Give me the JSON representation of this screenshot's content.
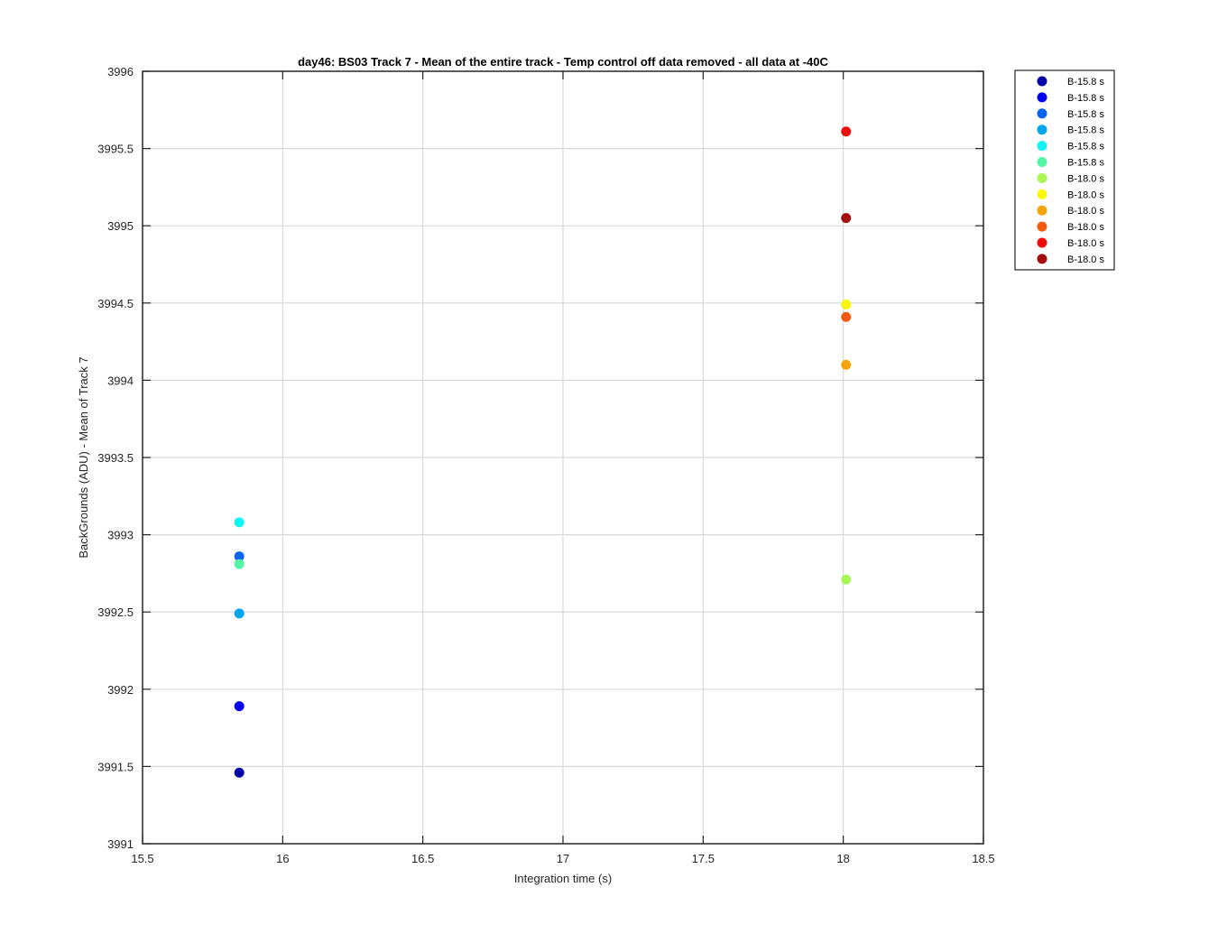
{
  "chart_data": {
    "type": "scatter",
    "title": "day46: BS03  Track 7 - Mean of the entire track - Temp control off data removed - all data at -40C",
    "xlabel": "Integration time (s)",
    "ylabel": "BackGrounds (ADU) - Mean of Track 7",
    "xlim": [
      15.5,
      18.5
    ],
    "ylim": [
      3991,
      3996
    ],
    "xticks": [
      "15.5",
      "16",
      "16.5",
      "17",
      "17.5",
      "18",
      "18.5"
    ],
    "yticks": [
      "3991",
      "3991.5",
      "3992",
      "3992.5",
      "3993",
      "3993.5",
      "3994",
      "3994.5",
      "3995",
      "3995.5",
      "3996"
    ],
    "grid": true,
    "legend_position": "outside-top-right",
    "series": [
      {
        "name": "B-15.8 s",
        "color": "#0000a8",
        "x": 15.845,
        "y": 3991.46
      },
      {
        "name": "B-15.8 s",
        "color": "#0000ee",
        "x": 15.845,
        "y": 3991.89
      },
      {
        "name": "B-15.8 s",
        "color": "#0a64f0",
        "x": 15.845,
        "y": 3992.86
      },
      {
        "name": "B-15.8 s",
        "color": "#00a6f0",
        "x": 15.845,
        "y": 3992.49
      },
      {
        "name": "B-15.8 s",
        "color": "#10f4f4",
        "x": 15.845,
        "y": 3993.08
      },
      {
        "name": "B-15.8 s",
        "color": "#52f7a6",
        "x": 15.845,
        "y": 3992.81
      },
      {
        "name": "B-18.0 s",
        "color": "#a8f752",
        "x": 18.01,
        "y": 3992.71
      },
      {
        "name": "B-18.0 s",
        "color": "#f8f808",
        "x": 18.01,
        "y": 3994.49
      },
      {
        "name": "B-18.0 s",
        "color": "#f6a40c",
        "x": 18.01,
        "y": 3994.1
      },
      {
        "name": "B-18.0 s",
        "color": "#f45a10",
        "x": 18.01,
        "y": 3994.41
      },
      {
        "name": "B-18.0 s",
        "color": "#ee0c0c",
        "x": 18.01,
        "y": 3995.61
      },
      {
        "name": "B-18.0 s",
        "color": "#a50c0c",
        "x": 18.01,
        "y": 3995.05
      }
    ]
  }
}
